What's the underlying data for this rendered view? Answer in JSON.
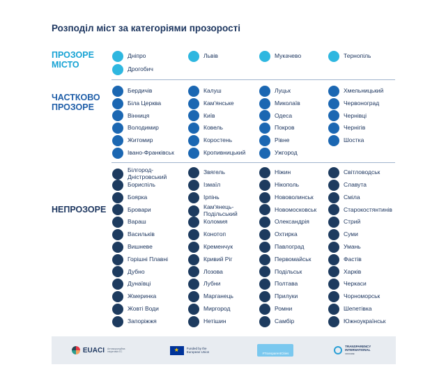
{
  "title": "Розподіл міст за категоріями прозорості",
  "categories": [
    {
      "label_line1": "ПРОЗОРЕ",
      "label_line2": "МІСТО",
      "cities": [
        "Дніпро",
        "Львів",
        "Мукачево",
        "Тернопіль",
        "Дрогобич"
      ]
    },
    {
      "label_line1": "ЧАСТКОВО",
      "label_line2": "ПРОЗОРЕ",
      "cities": [
        "Бердичів",
        "Калуш",
        "Луцьк",
        "Хмельницький",
        "Біла Церква",
        "Кам'янське",
        "Миколаїв",
        "Червоноград",
        "Вінниця",
        "Київ",
        "Одеса",
        "Чернівці",
        "Володимир",
        "Ковель",
        "Покров",
        "Чернігів",
        "Житомир",
        "Коростень",
        "Рівне",
        "Шостка",
        "Івано-Франківськ",
        "Кропивницький",
        "Ужгород"
      ]
    },
    {
      "label_line1": "НЕПРОЗОРЕ",
      "label_line2": "",
      "columns": [
        [
          "Білгород-\nДністровський",
          "Бориспіль",
          "Боярка",
          "Бровари",
          "Вараш",
          "Васильків",
          "Вишневе",
          "Горішні Плавні",
          "Дубно",
          "Дунаївці",
          "Жмеринка",
          "Жовті Води",
          "Запоріжжя"
        ],
        [
          "Звягель",
          "Ізмаїл",
          "Ірпінь",
          "Кам'янець-\nПодільський",
          "Коломия",
          "Конотоп",
          "Кременчук",
          "Кривий Ріг",
          "Лозова",
          "Лубни",
          "Марганець",
          "Миргород",
          "Нетішин"
        ],
        [
          "Ніжин",
          "Нікополь",
          "Нововолинськ",
          "Новомосковськ",
          "Олександрія",
          "Охтирка",
          "Павлоград",
          "Первомайськ",
          "Подільськ",
          "Полтава",
          "Прилуки",
          "Ромни",
          "Самбір"
        ],
        [
          "Світловодськ",
          "Славута",
          "Сміла",
          "Старокостянтинів",
          "Стрий",
          "Суми",
          "Умань",
          "Фастів",
          "Харків",
          "Черкаси",
          "Чорноморськ",
          "Шепетівка",
          "Южноукраїнськ"
        ]
      ]
    }
  ],
  "footer": {
    "euaci": {
      "name": "EUACI",
      "sub": "Антикорупційна ініціатива ЄС"
    },
    "eu": {
      "text": "Funded by the European Union"
    },
    "tc": {
      "text": "#TransparentCities"
    },
    "ti": {
      "name": "TRANSPARENCY INTERNATIONAL",
      "sub": "UKRAINE"
    }
  },
  "colors": {
    "transparent": "#2eb7e0",
    "partial": "#1b67b2",
    "opaque": "#1d3b5f"
  }
}
